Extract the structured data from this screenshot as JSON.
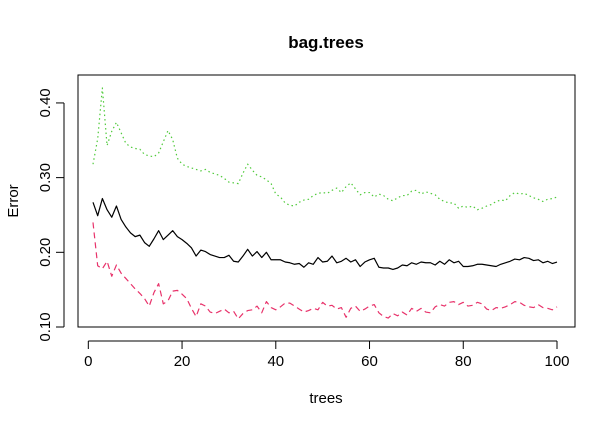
{
  "chart_data": {
    "type": "line",
    "title": "bag.trees",
    "xlabel": "trees",
    "ylabel": "Error",
    "xlim": [
      1,
      100
    ],
    "ylim": [
      0.1,
      0.42
    ],
    "x_ticks": [
      0,
      20,
      40,
      60,
      80,
      100
    ],
    "x_tick_labels": [
      "0",
      "20",
      "40",
      "60",
      "80",
      "100"
    ],
    "y_ticks": [
      0.1,
      0.2,
      0.3,
      0.4
    ],
    "y_tick_labels": [
      "0.10",
      "0.20",
      "0.30",
      "0.40"
    ],
    "grid": false,
    "legend": "none",
    "series": [
      {
        "color": "#000000",
        "line_style": "solid",
        "x": [
          1,
          2,
          3,
          4,
          5,
          6,
          7,
          8,
          9,
          10,
          11,
          12,
          13,
          14,
          15,
          16,
          17,
          18,
          19,
          20,
          21,
          22,
          23,
          24,
          25,
          26,
          27,
          28,
          29,
          30,
          31,
          32,
          33,
          34,
          35,
          36,
          37,
          38,
          39,
          40,
          41,
          42,
          43,
          44,
          45,
          46,
          47,
          48,
          49,
          50,
          51,
          52,
          53,
          54,
          55,
          56,
          57,
          58,
          59,
          60,
          61,
          62,
          63,
          64,
          65,
          66,
          67,
          68,
          69,
          70,
          71,
          72,
          73,
          74,
          75,
          76,
          77,
          78,
          79,
          80,
          81,
          82,
          83,
          84,
          85,
          86,
          87,
          88,
          89,
          90,
          91,
          92,
          93,
          94,
          95,
          96,
          97,
          98,
          99,
          100
        ],
        "values": [
          0.267,
          0.249,
          0.272,
          0.257,
          0.247,
          0.262,
          0.244,
          0.234,
          0.226,
          0.221,
          0.223,
          0.213,
          0.208,
          0.218,
          0.229,
          0.217,
          0.223,
          0.229,
          0.221,
          0.217,
          0.212,
          0.206,
          0.195,
          0.203,
          0.201,
          0.197,
          0.195,
          0.193,
          0.193,
          0.196,
          0.188,
          0.187,
          0.195,
          0.204,
          0.195,
          0.201,
          0.193,
          0.2,
          0.19,
          0.19,
          0.19,
          0.187,
          0.186,
          0.184,
          0.185,
          0.18,
          0.186,
          0.184,
          0.193,
          0.187,
          0.188,
          0.195,
          0.186,
          0.188,
          0.192,
          0.187,
          0.19,
          0.181,
          0.187,
          0.19,
          0.192,
          0.18,
          0.179,
          0.179,
          0.177,
          0.179,
          0.183,
          0.182,
          0.186,
          0.184,
          0.187,
          0.186,
          0.186,
          0.183,
          0.188,
          0.184,
          0.19,
          0.186,
          0.188,
          0.181,
          0.181,
          0.182,
          0.184,
          0.184,
          0.183,
          0.182,
          0.181,
          0.184,
          0.186,
          0.188,
          0.191,
          0.19,
          0.193,
          0.192,
          0.189,
          0.19,
          0.186,
          0.188,
          0.185,
          0.187
        ]
      },
      {
        "color": "#e8336b",
        "line_style": "dashed",
        "x": [
          1,
          2,
          3,
          4,
          5,
          6,
          7,
          8,
          9,
          10,
          11,
          12,
          13,
          14,
          15,
          16,
          17,
          18,
          19,
          20,
          21,
          22,
          23,
          24,
          25,
          26,
          27,
          28,
          29,
          30,
          31,
          32,
          33,
          34,
          35,
          36,
          37,
          38,
          39,
          40,
          41,
          42,
          43,
          44,
          45,
          46,
          47,
          48,
          49,
          50,
          51,
          52,
          53,
          54,
          55,
          56,
          57,
          58,
          59,
          60,
          61,
          62,
          63,
          64,
          65,
          66,
          67,
          68,
          69,
          70,
          71,
          72,
          73,
          74,
          75,
          76,
          77,
          78,
          79,
          80,
          81,
          82,
          83,
          84,
          85,
          86,
          87,
          88,
          89,
          90,
          91,
          92,
          93,
          94,
          95,
          96,
          97,
          98,
          99,
          100
        ],
        "values": [
          0.24,
          0.182,
          0.178,
          0.188,
          0.168,
          0.183,
          0.172,
          0.165,
          0.158,
          0.151,
          0.145,
          0.138,
          0.128,
          0.146,
          0.158,
          0.131,
          0.135,
          0.148,
          0.149,
          0.144,
          0.138,
          0.125,
          0.114,
          0.131,
          0.128,
          0.12,
          0.118,
          0.121,
          0.124,
          0.119,
          0.121,
          0.111,
          0.118,
          0.122,
          0.123,
          0.128,
          0.119,
          0.134,
          0.126,
          0.123,
          0.127,
          0.132,
          0.132,
          0.128,
          0.124,
          0.12,
          0.122,
          0.125,
          0.123,
          0.133,
          0.128,
          0.129,
          0.124,
          0.126,
          0.113,
          0.125,
          0.128,
          0.121,
          0.124,
          0.128,
          0.13,
          0.119,
          0.114,
          0.112,
          0.118,
          0.115,
          0.12,
          0.116,
          0.125,
          0.121,
          0.125,
          0.12,
          0.119,
          0.127,
          0.13,
          0.128,
          0.133,
          0.134,
          0.13,
          0.133,
          0.128,
          0.129,
          0.133,
          0.131,
          0.124,
          0.122,
          0.126,
          0.125,
          0.127,
          0.13,
          0.134,
          0.133,
          0.129,
          0.127,
          0.126,
          0.13,
          0.126,
          0.125,
          0.123,
          0.127
        ]
      },
      {
        "color": "#4fca3a",
        "line_style": "dotted",
        "x": [
          1,
          2,
          3,
          4,
          5,
          6,
          7,
          8,
          9,
          10,
          11,
          12,
          13,
          14,
          15,
          16,
          17,
          18,
          19,
          20,
          21,
          22,
          23,
          24,
          25,
          26,
          27,
          28,
          29,
          30,
          31,
          32,
          33,
          34,
          35,
          36,
          37,
          38,
          39,
          40,
          41,
          42,
          43,
          44,
          45,
          46,
          47,
          48,
          49,
          50,
          51,
          52,
          53,
          54,
          55,
          56,
          57,
          58,
          59,
          60,
          61,
          62,
          63,
          64,
          65,
          66,
          67,
          68,
          69,
          70,
          71,
          72,
          73,
          74,
          75,
          76,
          77,
          78,
          79,
          80,
          81,
          82,
          83,
          84,
          85,
          86,
          87,
          88,
          89,
          90,
          91,
          92,
          93,
          94,
          95,
          96,
          97,
          98,
          99,
          100
        ],
        "values": [
          0.318,
          0.352,
          0.42,
          0.343,
          0.362,
          0.374,
          0.36,
          0.346,
          0.341,
          0.339,
          0.338,
          0.331,
          0.329,
          0.328,
          0.333,
          0.348,
          0.363,
          0.351,
          0.326,
          0.318,
          0.315,
          0.313,
          0.311,
          0.309,
          0.311,
          0.307,
          0.305,
          0.303,
          0.299,
          0.294,
          0.293,
          0.292,
          0.306,
          0.318,
          0.31,
          0.303,
          0.301,
          0.297,
          0.292,
          0.278,
          0.274,
          0.266,
          0.263,
          0.262,
          0.267,
          0.27,
          0.271,
          0.276,
          0.279,
          0.28,
          0.279,
          0.283,
          0.286,
          0.28,
          0.288,
          0.293,
          0.285,
          0.277,
          0.28,
          0.28,
          0.274,
          0.278,
          0.276,
          0.271,
          0.269,
          0.273,
          0.276,
          0.276,
          0.282,
          0.283,
          0.278,
          0.281,
          0.279,
          0.277,
          0.271,
          0.268,
          0.266,
          0.266,
          0.259,
          0.262,
          0.26,
          0.262,
          0.257,
          0.259,
          0.262,
          0.264,
          0.268,
          0.27,
          0.269,
          0.276,
          0.28,
          0.278,
          0.279,
          0.276,
          0.273,
          0.271,
          0.268,
          0.271,
          0.272,
          0.274
        ]
      }
    ]
  }
}
